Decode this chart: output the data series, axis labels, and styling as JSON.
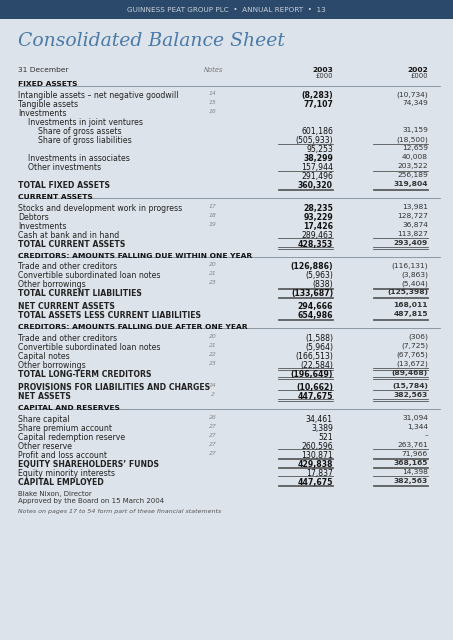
{
  "header_text": "GUINNESS PEAT GROUP PLC  •  ANNUAL REPORT  •  13",
  "title": "Consolidated Balance Sheet",
  "bg_color": "#dde3ea",
  "header_bg": "#2b4a6b",
  "header_text_color": "#c8d0d8",
  "title_color": "#4a7aaa",
  "rows": [
    {
      "type": "colheader",
      "label": "31 December",
      "notes": "Notes",
      "col1": "2003\n£000",
      "col2": "2002\n£000"
    },
    {
      "type": "sectionheader",
      "label": "FIXED ASSETS",
      "notes": "",
      "col1": "",
      "col2": ""
    },
    {
      "type": "divider"
    },
    {
      "type": "item",
      "label": "Intangible assets – net negative goodwill",
      "notes": "14",
      "col1": "(8,283)",
      "col2": "(10,734)",
      "bold1": true
    },
    {
      "type": "item",
      "label": "Tangible assets",
      "notes": "15",
      "col1": "77,107",
      "col2": "74,349",
      "bold1": true
    },
    {
      "type": "item",
      "label": "Investments",
      "notes": "16",
      "col1": "",
      "col2": ""
    },
    {
      "type": "item",
      "label": "  Investments in joint ventures",
      "notes": "",
      "col1": "",
      "col2": ""
    },
    {
      "type": "item",
      "label": "    Share of gross assets",
      "notes": "",
      "col1": "601,186",
      "col2": "31,159"
    },
    {
      "type": "item_underline",
      "label": "    Share of gross liabilities",
      "notes": "",
      "col1": "(505,933)",
      "col2": "(18,500)"
    },
    {
      "type": "item",
      "label": "",
      "notes": "",
      "col1": "95,253",
      "col2": "12,659"
    },
    {
      "type": "item",
      "label": "  Investments in associates",
      "notes": "",
      "col1": "38,299",
      "col2": "40,008",
      "bold1": true
    },
    {
      "type": "item_underline",
      "label": "  Other investments",
      "notes": "",
      "col1": "157,944",
      "col2": "203,522"
    },
    {
      "type": "item",
      "label": "",
      "notes": "",
      "col1": "291,496",
      "col2": "256,189"
    },
    {
      "type": "item_underline2",
      "label": "TOTAL FIXED ASSETS",
      "notes": "",
      "col1": "360,320",
      "col2": "319,804",
      "bold": true
    },
    {
      "type": "spacer"
    },
    {
      "type": "sectionheader",
      "label": "CURRENT ASSETS",
      "notes": "",
      "col1": "",
      "col2": ""
    },
    {
      "type": "divider"
    },
    {
      "type": "item",
      "label": "Stocks and development work in progress",
      "notes": "17",
      "col1": "28,235",
      "col2": "13,981",
      "bold1": true
    },
    {
      "type": "item",
      "label": "Debtors",
      "notes": "18",
      "col1": "93,229",
      "col2": "128,727",
      "bold1": true
    },
    {
      "type": "item",
      "label": "Investments",
      "notes": "19",
      "col1": "17,426",
      "col2": "36,874",
      "bold1": true
    },
    {
      "type": "item_underline",
      "label": "Cash at bank and in hand",
      "notes": "",
      "col1": "289,463",
      "col2": "113,827"
    },
    {
      "type": "item_underline2",
      "label": "TOTAL CURRENT ASSETS",
      "notes": "",
      "col1": "428,353",
      "col2": "293,409",
      "bold": true
    },
    {
      "type": "spacer"
    },
    {
      "type": "sectionheader",
      "label": "CREDITORS: AMOUNTS FALLING DUE WITHIN ONE YEAR",
      "notes": "",
      "col1": "",
      "col2": ""
    },
    {
      "type": "divider"
    },
    {
      "type": "item",
      "label": "Trade and other creditors",
      "notes": "20",
      "col1": "(126,886)",
      "col2": "(116,131)",
      "bold1": true
    },
    {
      "type": "item",
      "label": "Convertible subordinated loan notes",
      "notes": "21",
      "col1": "(5,963)",
      "col2": "(3,863)"
    },
    {
      "type": "item_underline2",
      "label": "Other borrowings",
      "notes": "23",
      "col1": "(838)",
      "col2": "(5,404)"
    },
    {
      "type": "item_underline2",
      "label": "TOTAL CURRENT LIABILITIES",
      "notes": "",
      "col1": "(133,687)",
      "col2": "(125,398)",
      "bold": true
    },
    {
      "type": "spacer"
    },
    {
      "type": "item",
      "label": "NET CURRENT ASSETS",
      "notes": "",
      "col1": "294,666",
      "col2": "168,011",
      "bold": true
    },
    {
      "type": "item_underline2",
      "label": "TOTAL ASSETS LESS CURRENT LIABILITIES",
      "notes": "",
      "col1": "654,986",
      "col2": "487,815",
      "bold": true
    },
    {
      "type": "spacer"
    },
    {
      "type": "sectionheader",
      "label": "CREDITORS: AMOUNTS FALLING DUE AFTER ONE YEAR",
      "notes": "",
      "col1": "",
      "col2": ""
    },
    {
      "type": "divider"
    },
    {
      "type": "item",
      "label": "Trade and other creditors",
      "notes": "20",
      "col1": "(1,588)",
      "col2": "(306)"
    },
    {
      "type": "item",
      "label": "Convertible subordinated loan notes",
      "notes": "21",
      "col1": "(5,964)",
      "col2": "(7,725)"
    },
    {
      "type": "item",
      "label": "Capital notes",
      "notes": "22",
      "col1": "(166,513)",
      "col2": "(67,765)"
    },
    {
      "type": "item_underline2",
      "label": "Other borrowings",
      "notes": "23",
      "col1": "(22,584)",
      "col2": "(13,672)"
    },
    {
      "type": "item_underline2",
      "label": "TOTAL LONG-TERM CREDITORS",
      "notes": "",
      "col1": "(196,649)",
      "col2": "(89,468)",
      "bold": true
    },
    {
      "type": "spacer"
    },
    {
      "type": "item_underline",
      "label": "PROVISIONS FOR LIABILITIES AND CHARGES",
      "notes": "24",
      "col1": "(10,662)",
      "col2": "(15,784)",
      "bold": true
    },
    {
      "type": "item_underline2",
      "label": "NET ASSETS",
      "notes": "2",
      "col1": "447,675",
      "col2": "382,563",
      "bold": true
    },
    {
      "type": "spacer"
    },
    {
      "type": "sectionheader",
      "label": "CAPITAL AND RESERVES",
      "notes": "",
      "col1": "",
      "col2": ""
    },
    {
      "type": "divider"
    },
    {
      "type": "item",
      "label": "Share capital",
      "notes": "26",
      "col1": "34,461",
      "col2": "31,094"
    },
    {
      "type": "item",
      "label": "Share premium account",
      "notes": "27",
      "col1": "3,389",
      "col2": "1,344"
    },
    {
      "type": "item",
      "label": "Capital redemption reserve",
      "notes": "27",
      "col1": "521",
      "col2": "–"
    },
    {
      "type": "item_underline",
      "label": "Other reserve",
      "notes": "27",
      "col1": "260,596",
      "col2": "263,761"
    },
    {
      "type": "item_underline2",
      "label": "Profit and loss account",
      "notes": "27",
      "col1": "130,871",
      "col2": "71,966"
    },
    {
      "type": "item_underline2",
      "label": "EQUITY SHAREHOLDERS’ FUNDS",
      "notes": "",
      "col1": "429,838",
      "col2": "368,165",
      "bold": true
    },
    {
      "type": "item_underline",
      "label": "Equity minority interests",
      "notes": "",
      "col1": "17,837",
      "col2": "14,398"
    },
    {
      "type": "item_underline2",
      "label": "CAPITAL EMPLOYED",
      "notes": "",
      "col1": "447,675",
      "col2": "382,563",
      "bold": true
    },
    {
      "type": "spacer"
    },
    {
      "type": "footer",
      "label": "Blake Nixon, Director\nApproved by the Board on 15 March 2004",
      "notes": "",
      "col1": "",
      "col2": ""
    },
    {
      "type": "spacer"
    },
    {
      "type": "footnote",
      "label": "Notes on pages 17 to 54 form part of these financial statements",
      "notes": "",
      "col1": "",
      "col2": ""
    }
  ]
}
